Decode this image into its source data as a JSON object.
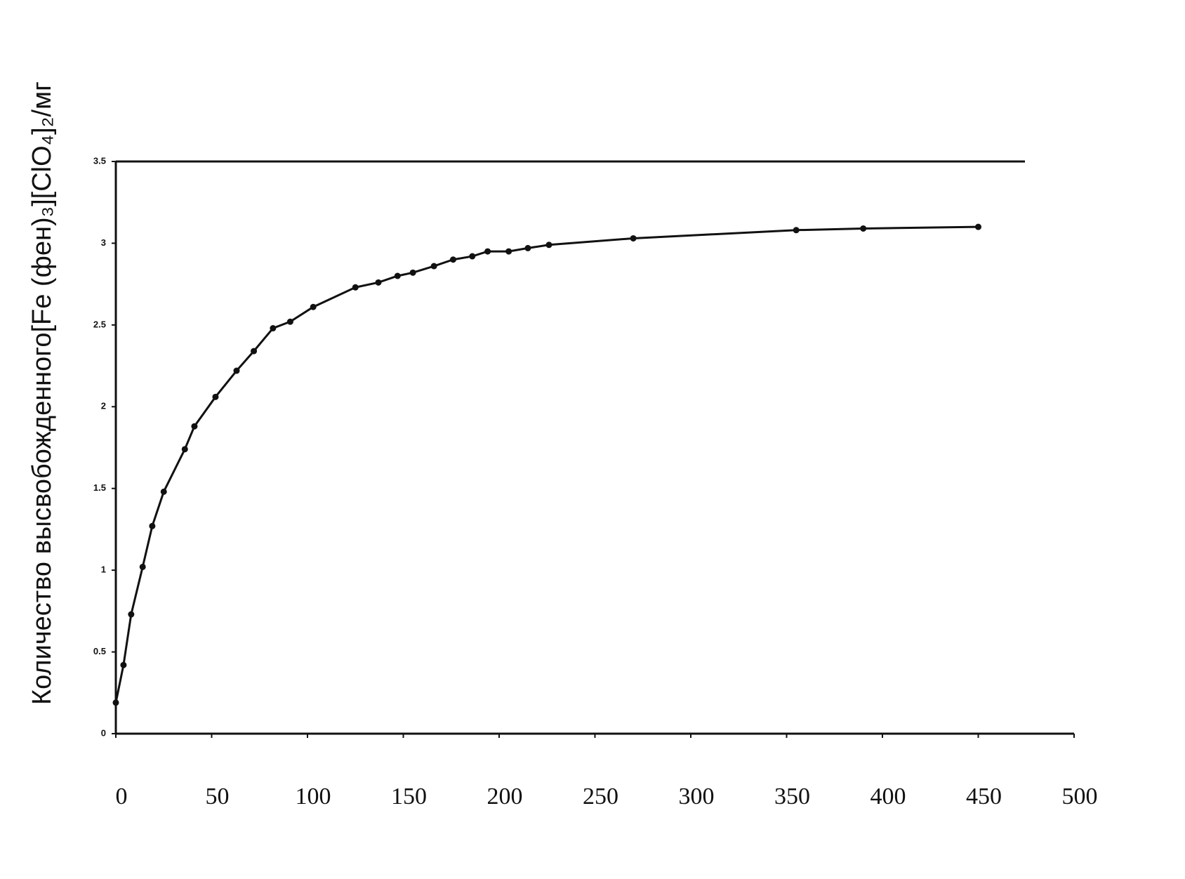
{
  "chart_data": {
    "type": "line",
    "ylabel": "Количество высвобожденного[Fe (фен)₃][ClO₄]₂/мг",
    "x": [
      0,
      4,
      8,
      14,
      19,
      25,
      36,
      41,
      52,
      63,
      72,
      82,
      91,
      103,
      125,
      137,
      147,
      155,
      166,
      176,
      186,
      194,
      205,
      215,
      226,
      270,
      355,
      390,
      450
    ],
    "series": [
      {
        "color": "#111111",
        "values": [
          0.19,
          0.42,
          0.73,
          1.02,
          1.27,
          1.48,
          1.74,
          1.88,
          2.06,
          2.22,
          2.34,
          2.48,
          2.52,
          2.61,
          2.73,
          2.76,
          2.8,
          2.82,
          2.86,
          2.9,
          2.92,
          2.95,
          2.95,
          2.97,
          2.99,
          3.03,
          3.08,
          3.09,
          3.1
        ]
      }
    ],
    "xlim": [
      0,
      500
    ],
    "xticks": [
      0,
      50,
      100,
      150,
      200,
      250,
      300,
      350,
      400,
      450,
      500
    ],
    "ylim": [
      0,
      3.5
    ],
    "yticks": [
      0,
      0.5,
      1,
      1.5,
      2,
      2.5,
      3,
      3.5
    ],
    "grid": false
  }
}
